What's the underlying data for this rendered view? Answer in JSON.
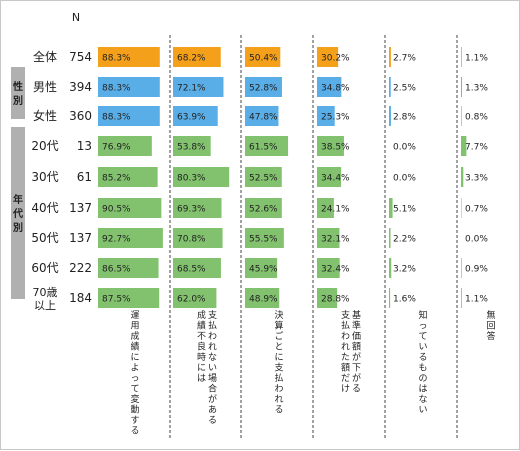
{
  "chart_data": {
    "type": "bar",
    "n_header": "N",
    "group_labels": [
      "性別",
      "年代別"
    ],
    "rows": [
      {
        "label": "全体",
        "n": "754",
        "group": "total"
      },
      {
        "label": "男性",
        "n": "394",
        "group": "gender"
      },
      {
        "label": "女性",
        "n": "360",
        "group": "gender"
      },
      {
        "label": "20代",
        "n": "13",
        "group": "age"
      },
      {
        "label": "30代",
        "n": "61",
        "group": "age"
      },
      {
        "label": "40代",
        "n": "137",
        "group": "age"
      },
      {
        "label": "50代",
        "n": "137",
        "group": "age"
      },
      {
        "label": "60代",
        "n": "222",
        "group": "age"
      },
      {
        "label": "70歳以上",
        "n": "184",
        "group": "age"
      }
    ],
    "series": [
      {
        "name": "運用成績によって変動する",
        "values": [
          88.3,
          88.3,
          88.3,
          76.9,
          85.2,
          90.5,
          92.7,
          86.5,
          87.5
        ]
      },
      {
        "name": "支払われない場合がある成績不良時には",
        "values": [
          68.2,
          72.1,
          63.9,
          53.8,
          80.3,
          69.3,
          70.8,
          68.5,
          62.0
        ]
      },
      {
        "name": "決算ごとに支払われる",
        "values": [
          50.4,
          52.8,
          47.8,
          61.5,
          52.5,
          52.6,
          55.5,
          45.9,
          48.9
        ]
      },
      {
        "name": "基準価額が下がる支払われた額だけ",
        "values": [
          30.2,
          34.8,
          25.3,
          38.5,
          34.4,
          24.1,
          32.1,
          32.4,
          28.8
        ]
      },
      {
        "name": "知っているものはない",
        "values": [
          2.7,
          2.5,
          2.8,
          0.0,
          0.0,
          5.1,
          2.2,
          3.2,
          1.6
        ]
      },
      {
        "name": "無回答",
        "values": [
          1.1,
          1.3,
          0.8,
          7.7,
          3.3,
          0.7,
          0.0,
          0.9,
          1.1
        ]
      }
    ],
    "colors": {
      "total": "#f5a01a",
      "gender": "#5aaee8",
      "age": "#82c26e",
      "group_box": "#b0b0b0"
    }
  }
}
